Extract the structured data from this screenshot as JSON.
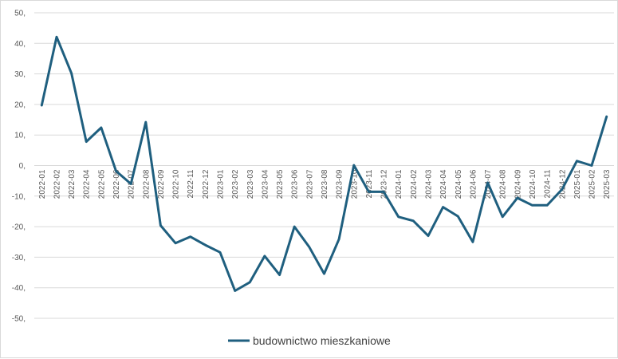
{
  "chart_data": {
    "type": "line",
    "title": "",
    "xlabel": "",
    "ylabel": "",
    "ylim": [
      -50,
      50
    ],
    "y_ticks": [
      "50,",
      "40,",
      "30,",
      "20,",
      "10,",
      "0,",
      "-10,",
      "-20,",
      "-30,",
      "-40,",
      "-50,"
    ],
    "y_tick_values": [
      50,
      40,
      30,
      20,
      10,
      0,
      -10,
      -20,
      -30,
      -40,
      -50
    ],
    "grid": "horizontal",
    "legend_position": "bottom",
    "line_color": "#1f5f7f",
    "categories": [
      "2022-01",
      "2022-02",
      "2022-03",
      "2022-04",
      "2022-05",
      "2022-06",
      "2022-07",
      "2022-08",
      "2022-09",
      "2022-10",
      "2022-11",
      "2022-12",
      "2023-01",
      "2023-02",
      "2023-03",
      "2023-04",
      "2023-05",
      "2023-06",
      "2023-07",
      "2023-08",
      "2023-09",
      "2023-10",
      "2023-11",
      "2023-12",
      "2024-01",
      "2024-02",
      "2024-03",
      "2024-04",
      "2024-05",
      "2024-06",
      "2024-07",
      "2024-08",
      "2024-09",
      "2024-10",
      "2024-11",
      "2024-12",
      "2025-01",
      "2025-02",
      "2025-03"
    ],
    "series": [
      {
        "name": "budownictwo mieszkaniowe",
        "values": [
          19.7,
          42.1,
          30.2,
          7.8,
          12.4,
          -1.8,
          -6.0,
          14.2,
          -19.6,
          -25.4,
          -23.3,
          -26.0,
          -28.4,
          -41.0,
          -38.2,
          -29.6,
          -35.8,
          -20.0,
          -26.7,
          -35.4,
          -24.1,
          0.1,
          -8.6,
          -8.6,
          -16.8,
          -18.1,
          -23.0,
          -13.6,
          -16.6,
          -25.0,
          -5.6,
          -16.8,
          -10.6,
          -13.0,
          -13.0,
          -7.8,
          1.5,
          0.0,
          16.0
        ]
      }
    ]
  }
}
